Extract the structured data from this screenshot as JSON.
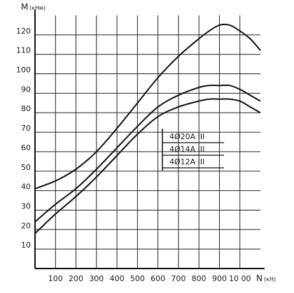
{
  "chart_data": {
    "type": "line",
    "title": "",
    "ylabel": "M",
    "ylabel_unit": "(кНм)",
    "xlabel": "N",
    "xlabel_unit": "(кН)",
    "xlim": [
      0,
      1100
    ],
    "ylim": [
      0,
      130
    ],
    "x_ticks": [
      {
        "value": 100,
        "label": "100"
      },
      {
        "value": 200,
        "label": "200"
      },
      {
        "value": 300,
        "label": "300"
      },
      {
        "value": 400,
        "label": "400"
      },
      {
        "value": 500,
        "label": "500"
      },
      {
        "value": 600,
        "label": "600"
      },
      {
        "value": 700,
        "label": "700"
      },
      {
        "value": 800,
        "label": "800"
      },
      {
        "value": 900,
        "label": "900"
      },
      {
        "value": 1000,
        "label": "10 00"
      }
    ],
    "y_ticks": [
      {
        "value": 10,
        "label": "10"
      },
      {
        "value": 20,
        "label": "20"
      },
      {
        "value": 30,
        "label": "30"
      },
      {
        "value": 40,
        "label": "40"
      },
      {
        "value": 50,
        "label": "50"
      },
      {
        "value": 60,
        "label": "60"
      },
      {
        "value": 70,
        "label": "70"
      },
      {
        "value": 80,
        "label": "80"
      },
      {
        "value": 90,
        "label": "90"
      },
      {
        "value": 100,
        "label": "100"
      },
      {
        "value": 110,
        "label": "110"
      },
      {
        "value": 120,
        "label": "120"
      }
    ],
    "grid": true,
    "legend_position": "center-right",
    "series": [
      {
        "name": "4Ø20A III",
        "x": [
          0,
          100,
          200,
          300,
          400,
          500,
          600,
          700,
          800,
          850,
          900,
          950,
          1000,
          1050,
          1100
        ],
        "y": [
          41,
          45,
          51,
          60,
          72,
          85,
          98,
          109,
          118,
          122,
          125,
          125,
          122,
          118,
          112
        ]
      },
      {
        "name": "4Ø14A III",
        "x": [
          0,
          100,
          200,
          300,
          400,
          500,
          600,
          700,
          800,
          850,
          900,
          950,
          1000,
          1050,
          1100
        ],
        "y": [
          24,
          33,
          41,
          51,
          62,
          73,
          83,
          89,
          93,
          94,
          94,
          94,
          92,
          89,
          86
        ]
      },
      {
        "name": "4Ø12A III",
        "x": [
          0,
          100,
          200,
          300,
          400,
          500,
          600,
          700,
          800,
          850,
          900,
          950,
          1000,
          1050,
          1100
        ],
        "y": [
          18,
          28,
          37,
          47,
          58,
          69,
          78,
          83,
          86,
          87,
          87,
          87,
          86,
          83,
          80
        ]
      }
    ]
  }
}
